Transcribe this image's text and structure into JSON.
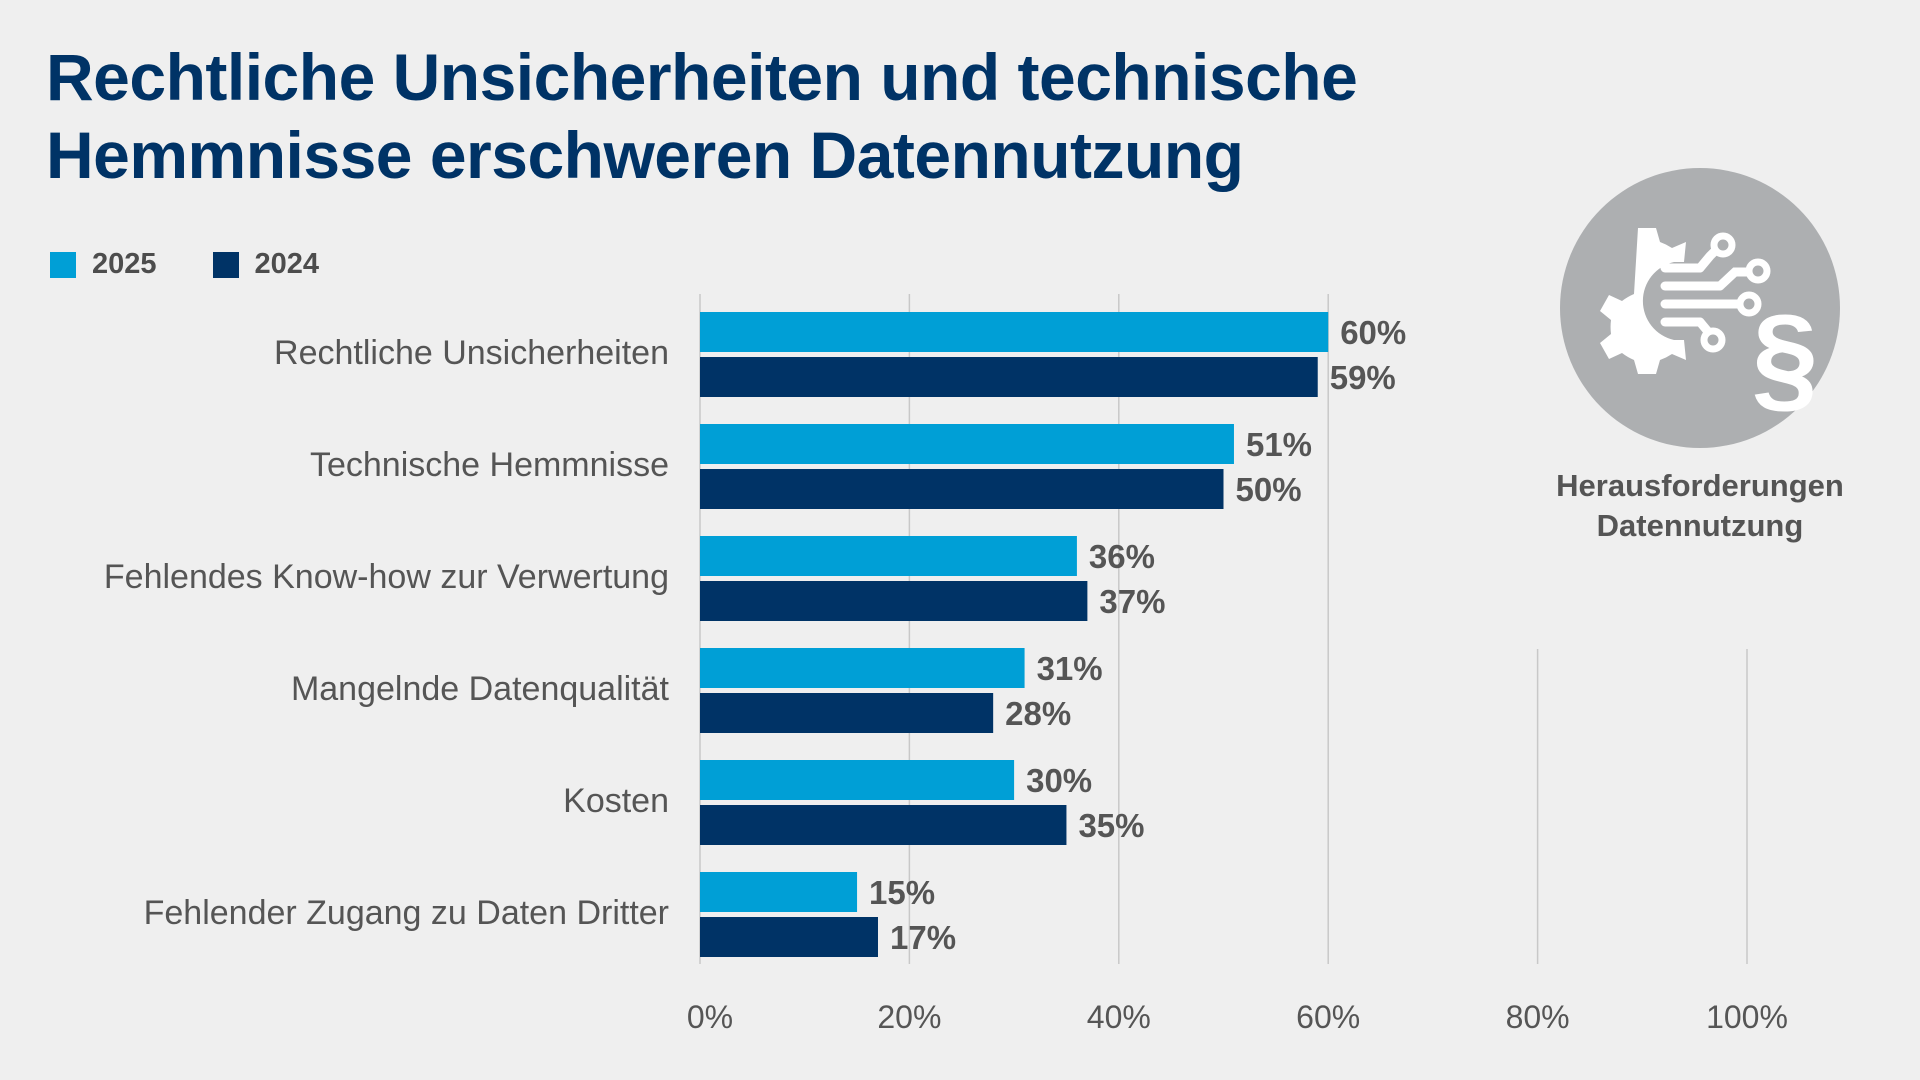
{
  "title_line1": "Rechtliche Unsicherheiten und technische",
  "title_line2": "Hemmnisse erschweren Datennutzung",
  "badge": {
    "line1": "Herausforderungen",
    "line2": "Datennutzung",
    "icon": "gear-circuit-paragraph-icon"
  },
  "colors": {
    "s2025": "#009fd6",
    "s2024": "#003366",
    "grid": "#c8c8c8",
    "text": "#555555"
  },
  "chart_data": {
    "type": "bar",
    "orientation": "horizontal",
    "title": "Rechtliche Unsicherheiten und technische Hemmnisse erschweren Datennutzung",
    "categories": [
      "Rechtliche Unsicherheiten",
      "Technische Hemmnisse",
      "Fehlendes Know-how zur Verwertung",
      "Mangelnde Datenqualität",
      "Kosten",
      "Fehlender Zugang zu Daten Dritter"
    ],
    "series": [
      {
        "name": "2025",
        "values": [
          60,
          51,
          36,
          31,
          30,
          15
        ]
      },
      {
        "name": "2024",
        "values": [
          59,
          50,
          37,
          28,
          35,
          17
        ]
      }
    ],
    "xlim": [
      0,
      100
    ],
    "xticks": [
      0,
      20,
      40,
      60,
      80,
      100
    ],
    "xtick_labels": [
      "0%",
      "20%",
      "40%",
      "60%",
      "80%",
      "100%"
    ],
    "value_suffix": "%",
    "grid": true,
    "legend_position": "top-left"
  }
}
